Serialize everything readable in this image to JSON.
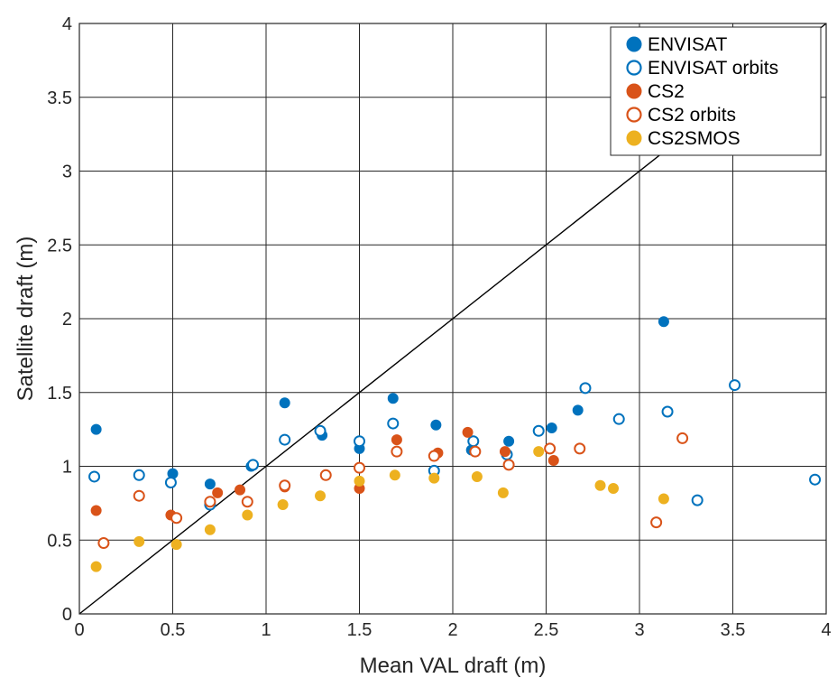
{
  "chart_data": {
    "type": "scatter",
    "title": "",
    "xlabel": "Mean VAL draft (m)",
    "ylabel": "Satellite draft (m)",
    "xlim": [
      0,
      4
    ],
    "ylim": [
      0,
      4
    ],
    "xticks": [
      "0",
      "0.5",
      "1",
      "1.5",
      "2",
      "2.5",
      "3",
      "3.5",
      "4"
    ],
    "yticks": [
      "0",
      "0.5",
      "1",
      "1.5",
      "2",
      "2.5",
      "3",
      "3.5",
      "4"
    ],
    "grid": true,
    "legend_position": "top-right",
    "reference_line": {
      "x": [
        0,
        4
      ],
      "y": [
        0,
        4
      ],
      "color": "#000000"
    },
    "series": [
      {
        "name": "ENVISAT",
        "marker": "filled",
        "color": "#0072BD",
        "points": [
          [
            0.09,
            1.25
          ],
          [
            0.5,
            0.95
          ],
          [
            0.7,
            0.88
          ],
          [
            0.92,
            1.0
          ],
          [
            1.1,
            1.43
          ],
          [
            1.3,
            1.21
          ],
          [
            1.5,
            1.12
          ],
          [
            1.68,
            1.46
          ],
          [
            1.91,
            1.28
          ],
          [
            2.1,
            1.11
          ],
          [
            2.3,
            1.17
          ],
          [
            2.53,
            1.26
          ],
          [
            2.67,
            1.38
          ],
          [
            3.13,
            1.98
          ]
        ]
      },
      {
        "name": "ENVISAT orbits",
        "marker": "open",
        "color": "#0072BD",
        "points": [
          [
            0.08,
            0.93
          ],
          [
            0.32,
            0.94
          ],
          [
            0.49,
            0.89
          ],
          [
            0.7,
            0.74
          ],
          [
            0.93,
            1.01
          ],
          [
            1.1,
            1.18
          ],
          [
            1.29,
            1.24
          ],
          [
            1.5,
            1.17
          ],
          [
            1.68,
            1.29
          ],
          [
            1.9,
            0.97
          ],
          [
            2.11,
            1.17
          ],
          [
            2.29,
            1.08
          ],
          [
            2.46,
            1.24
          ],
          [
            2.71,
            1.53
          ],
          [
            2.89,
            1.32
          ],
          [
            3.15,
            1.37
          ],
          [
            3.31,
            0.77
          ],
          [
            3.51,
            1.55
          ],
          [
            3.94,
            0.91
          ]
        ]
      },
      {
        "name": "CS2",
        "marker": "filled",
        "color": "#D95319",
        "points": [
          [
            0.09,
            0.7
          ],
          [
            0.49,
            0.67
          ],
          [
            0.74,
            0.82
          ],
          [
            0.86,
            0.84
          ],
          [
            1.1,
            0.86
          ],
          [
            1.32,
            0.94
          ],
          [
            1.5,
            0.85
          ],
          [
            1.7,
            1.18
          ],
          [
            1.92,
            1.09
          ],
          [
            2.08,
            1.23
          ],
          [
            2.28,
            1.1
          ],
          [
            2.54,
            1.04
          ]
        ]
      },
      {
        "name": "CS2 orbits",
        "marker": "open",
        "color": "#D95319",
        "points": [
          [
            0.13,
            0.48
          ],
          [
            0.32,
            0.8
          ],
          [
            0.52,
            0.65
          ],
          [
            0.7,
            0.76
          ],
          [
            0.9,
            0.76
          ],
          [
            1.1,
            0.87
          ],
          [
            1.32,
            0.94
          ],
          [
            1.5,
            0.99
          ],
          [
            1.7,
            1.1
          ],
          [
            1.9,
            1.07
          ],
          [
            2.12,
            1.1
          ],
          [
            2.3,
            1.01
          ],
          [
            2.52,
            1.12
          ],
          [
            2.68,
            1.12
          ],
          [
            3.09,
            0.62
          ],
          [
            3.23,
            1.19
          ]
        ]
      },
      {
        "name": "CS2SMOS",
        "marker": "filled",
        "color": "#EDB120",
        "points": [
          [
            0.09,
            0.32
          ],
          [
            0.32,
            0.49
          ],
          [
            0.52,
            0.47
          ],
          [
            0.7,
            0.57
          ],
          [
            0.9,
            0.67
          ],
          [
            1.09,
            0.74
          ],
          [
            1.29,
            0.8
          ],
          [
            1.5,
            0.9
          ],
          [
            1.69,
            0.94
          ],
          [
            1.9,
            0.92
          ],
          [
            2.13,
            0.93
          ],
          [
            2.27,
            0.82
          ],
          [
            2.46,
            1.1
          ],
          [
            2.79,
            0.87
          ],
          [
            2.86,
            0.85
          ],
          [
            3.13,
            0.78
          ]
        ]
      }
    ]
  }
}
